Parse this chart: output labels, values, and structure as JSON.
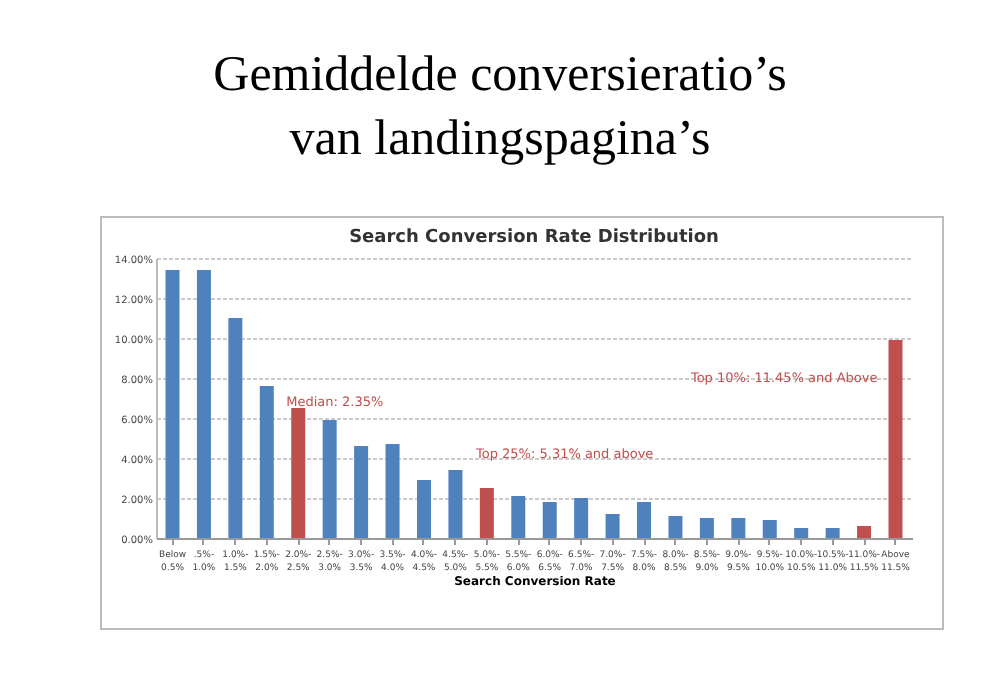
{
  "chart_data": {
    "type": "bar",
    "title": "Gemiddelde conversieratio’s\nvan landingspagina’s",
    "subtitle": "Search Conversion Rate Distribution",
    "xlabel": "Search Conversion Rate",
    "categories": [
      "Below 0.5%",
      ".5%-1.0%",
      "1.0%-1.5%",
      "1.5%-2.0%",
      "2.0%-2.5%",
      "2.5%-3.0%",
      "3.0%-3.5%",
      "3.5%-4.0%",
      "4.0%-4.5%",
      "4.5%-5.0%",
      "5.0%-5.5%",
      "5.5%-6.0%",
      "6.0%-6.5%",
      "6.5%-7.0%",
      "7.0%-7.5%",
      "7.5%-8.0%",
      "8.0%-8.5%",
      "8.5%-9.0%",
      "9.0%-9.5%",
      "9.5%-10.0%",
      "10.0%-10.5%",
      "10.5%-11.0%",
      "11.0%-11.5%",
      "Above 11.5%"
    ],
    "values": [
      13.4,
      13.4,
      11.0,
      7.6,
      6.5,
      5.9,
      4.6,
      4.7,
      2.9,
      3.4,
      2.5,
      2.1,
      1.8,
      2.0,
      1.2,
      1.8,
      1.1,
      1.0,
      1.0,
      0.9,
      0.5,
      0.5,
      0.6,
      9.9
    ],
    "colors": [
      "#4f81bd",
      "#4f81bd",
      "#4f81bd",
      "#4f81bd",
      "#c0504d",
      "#4f81bd",
      "#4f81bd",
      "#4f81bd",
      "#4f81bd",
      "#4f81bd",
      "#c0504d",
      "#4f81bd",
      "#4f81bd",
      "#4f81bd",
      "#4f81bd",
      "#4f81bd",
      "#4f81bd",
      "#4f81bd",
      "#4f81bd",
      "#4f81bd",
      "#4f81bd",
      "#4f81bd",
      "#c0504d",
      "#c0504d"
    ],
    "ylim": [
      0,
      14
    ],
    "yticks": [
      {
        "value": 0,
        "label": "0.00%"
      },
      {
        "value": 2,
        "label": "2.00%"
      },
      {
        "value": 4,
        "label": "4.00%"
      },
      {
        "value": 6,
        "label": "6.00%"
      },
      {
        "value": 8,
        "label": "8.00%"
      },
      {
        "value": 10,
        "label": "10.00%"
      },
      {
        "value": 12,
        "label": "12.00%"
      },
      {
        "value": 14,
        "label": "14.00%"
      }
    ],
    "grid": "y",
    "annotations": [
      {
        "text": "Median: 2.35%",
        "x": "2.0%-2.5%",
        "y": 6.8
      },
      "Top 25%: 5.31% and above",
      {
        "text": "Top 10%: 11.45% and Above",
        "x": "Above 11.5%",
        "y": 8.0
      }
    ]
  }
}
